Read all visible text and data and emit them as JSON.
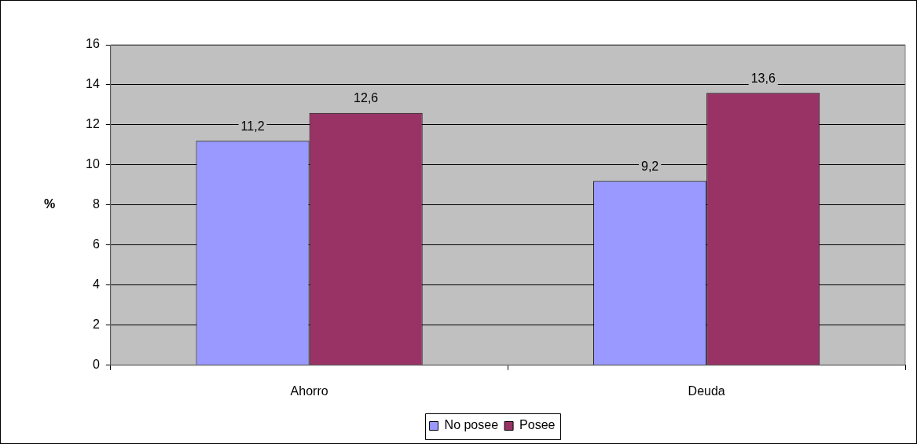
{
  "chart_data": {
    "type": "bar",
    "ylabel": "%",
    "categories": [
      "Ahorro",
      "Deuda"
    ],
    "series": [
      {
        "name": "No posee",
        "color": "#9999ff",
        "values": [
          11.2,
          9.2
        ],
        "value_labels": [
          "11,2",
          "9,2"
        ]
      },
      {
        "name": "Posee",
        "color": "#993366",
        "values": [
          12.6,
          13.6
        ],
        "value_labels": [
          "12,6",
          "13,6"
        ]
      }
    ],
    "ylim": [
      0,
      16
    ],
    "yticks": [
      0,
      2,
      4,
      6,
      8,
      10,
      12,
      14,
      16
    ],
    "grid": "y",
    "legend": "bottom"
  }
}
